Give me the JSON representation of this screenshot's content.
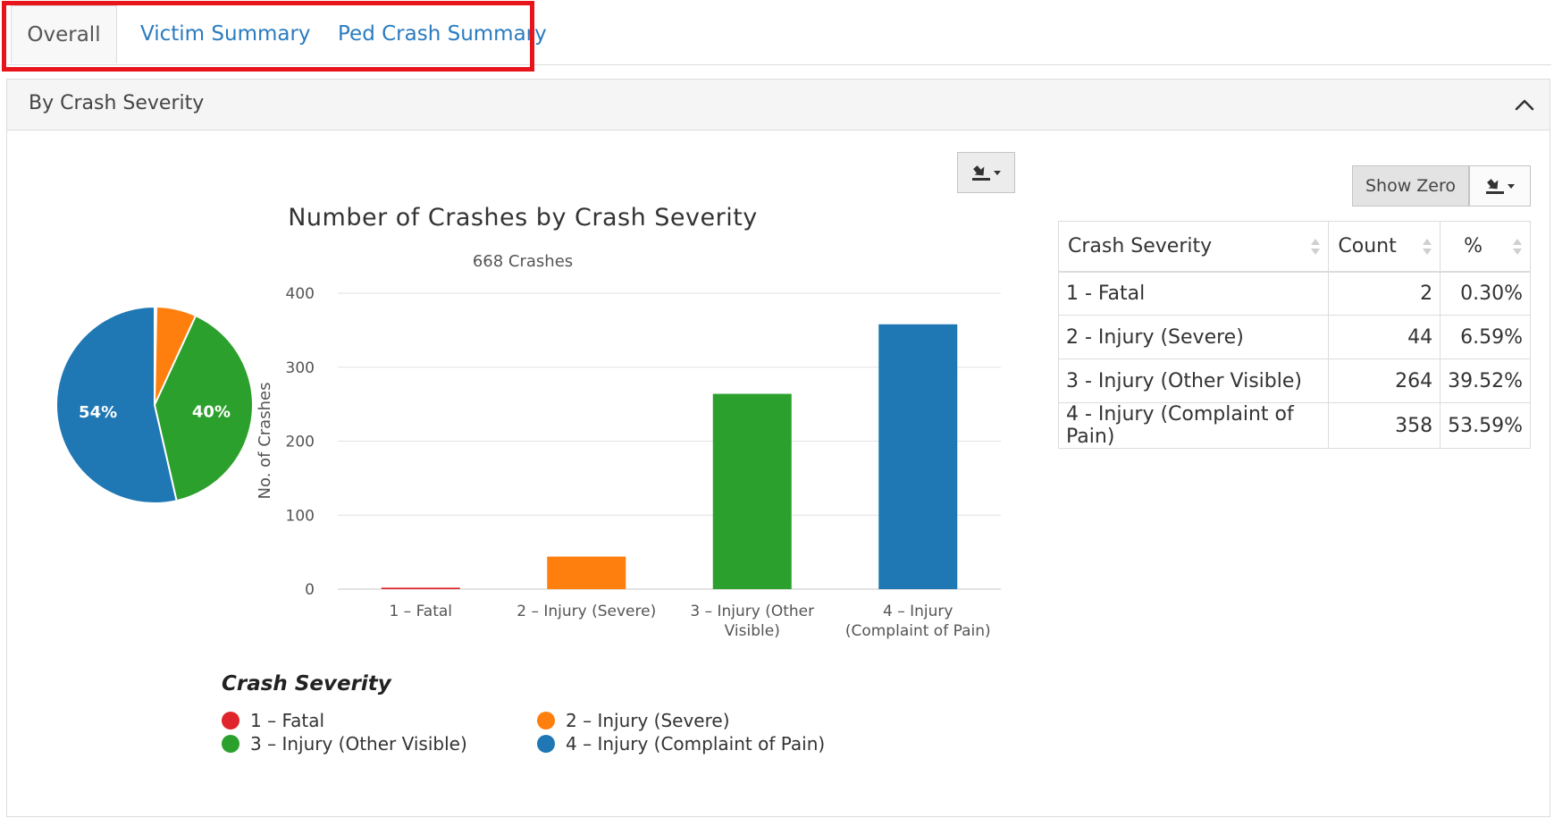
{
  "tabs": [
    {
      "label": "Overall",
      "active": true
    },
    {
      "label": "Victim Summary",
      "active": false
    },
    {
      "label": "Ped Crash Summary",
      "active": false
    }
  ],
  "panel": {
    "title": "By Crash Severity",
    "collapse_icon": "chevron-up-icon"
  },
  "colors": {
    "fatal": "#e0242c",
    "severe": "#ff7f0e",
    "other_visible": "#2ca02c",
    "complaint_pain": "#1f77b4",
    "link": "#2a7bbf",
    "highlight": "#e8141c"
  },
  "chart_data": [
    {
      "type": "pie",
      "categories": [
        "1 - Fatal",
        "2 - Injury (Severe)",
        "3 - Injury (Other Visible)",
        "4 - Injury (Complaint of Pain)"
      ],
      "values": [
        2,
        44,
        264,
        358
      ],
      "slice_labels": [
        "",
        "",
        "40%",
        "54%"
      ]
    },
    {
      "type": "bar",
      "title": "Number of Crashes by Crash Severity",
      "subtitle": "668 Crashes",
      "ylabel": "No. of Crashes",
      "xlabel": "",
      "categories": [
        "1 – Fatal",
        "2 – Injury (Severe)",
        "3 – Injury (Other Visible)",
        "4 – Injury (Complaint of Pain)"
      ],
      "category_lines": [
        [
          "1 – Fatal"
        ],
        [
          "2 – Injury (Severe)"
        ],
        [
          "3 – Injury (Other",
          "Visible)"
        ],
        [
          "4 – Injury",
          "(Complaint of Pain)"
        ]
      ],
      "values": [
        2,
        44,
        264,
        358
      ],
      "ylim": [
        0,
        400
      ],
      "yticks": [
        0,
        100,
        200,
        300,
        400
      ],
      "grid": true
    }
  ],
  "legend": {
    "title": "Crash Severity",
    "items": [
      {
        "label": "1 – Fatal",
        "color": "#e0242c"
      },
      {
        "label": "2 – Injury (Severe)",
        "color": "#ff7f0e"
      },
      {
        "label": "3 – Injury (Other Visible)",
        "color": "#2ca02c"
      },
      {
        "label": "4 – Injury (Complaint of Pain)",
        "color": "#1f77b4"
      }
    ]
  },
  "toolbar": {
    "show_zero_label": "Show Zero",
    "export_icon": "export-icon"
  },
  "table": {
    "headers": [
      "Crash Severity",
      "Count",
      "%"
    ],
    "rows": [
      [
        "1 - Fatal",
        "2",
        "0.30%"
      ],
      [
        "2 - Injury (Severe)",
        "44",
        "6.59%"
      ],
      [
        "3 - Injury (Other Visible)",
        "264",
        "39.52%"
      ],
      [
        "4 - Injury (Complaint of Pain)",
        "358",
        "53.59%"
      ]
    ]
  }
}
